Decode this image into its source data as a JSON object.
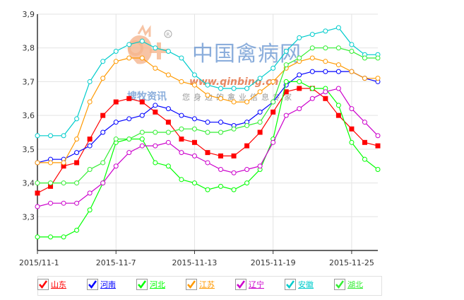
{
  "chart_data": {
    "type": "line",
    "x": [
      "2015/11-1",
      "2015-11-2",
      "2015-11-3",
      "2015-11-4",
      "2015-11-5",
      "2015-11-6",
      "2015-11-7",
      "2015-11-8",
      "2015-11-9",
      "2015-11-10",
      "2015-11-11",
      "2015-11-12",
      "2015-11-13",
      "2015-11-14",
      "2015-11-15",
      "2015-11-16",
      "2015-11-17",
      "2015-11-18",
      "2015-11-19",
      "2015-11-20",
      "2015-11-21",
      "2015-11-22",
      "2015-11-23",
      "2015-11-24",
      "2015-11-25",
      "2015-11-26",
      "2015-11-27"
    ],
    "xtick_labels": [
      "2015/11-1",
      "2015-11-7",
      "2015-11-13",
      "2015-11-19",
      "2015-11-25"
    ],
    "xtick_index": [
      0,
      6,
      12,
      18,
      24
    ],
    "ylim": [
      3.2,
      3.9
    ],
    "yticks": [
      3.3,
      3.4,
      3.5,
      3.6,
      3.7,
      3.8,
      3.9
    ],
    "ytick_labels": [
      "3,3",
      "3,4",
      "3,5",
      "3,6",
      "3,7",
      "3,8",
      "3,9"
    ],
    "grid": true,
    "legend_position": "bottom",
    "series": [
      {
        "name": "山东",
        "color": "#ff0000",
        "marker": "square",
        "values": [
          3.37,
          3.39,
          3.45,
          3.46,
          3.53,
          3.6,
          3.64,
          3.65,
          3.64,
          3.61,
          3.58,
          3.53,
          3.52,
          3.49,
          3.48,
          3.48,
          3.51,
          3.55,
          3.61,
          3.67,
          3.68,
          3.68,
          3.65,
          3.6,
          3.56,
          3.52,
          3.51
        ]
      },
      {
        "name": "河南",
        "color": "#0000ff",
        "marker": "circle",
        "values": [
          3.46,
          3.47,
          3.47,
          3.49,
          3.51,
          3.55,
          3.58,
          3.59,
          3.6,
          3.63,
          3.62,
          3.6,
          3.59,
          3.58,
          3.58,
          3.57,
          3.58,
          3.61,
          3.64,
          3.69,
          3.72,
          3.73,
          3.73,
          3.73,
          3.73,
          3.71,
          3.7
        ]
      },
      {
        "name": "河北",
        "color": "#00ff00",
        "marker": "circle",
        "values": [
          3.24,
          3.24,
          3.24,
          3.26,
          3.32,
          3.4,
          3.52,
          3.53,
          3.53,
          3.46,
          3.45,
          3.41,
          3.4,
          3.38,
          3.39,
          3.38,
          3.4,
          3.44,
          3.53,
          3.7,
          3.7,
          3.68,
          3.68,
          3.63,
          3.52,
          3.47,
          3.44
        ]
      },
      {
        "name": "江苏",
        "color": "#ff9900",
        "marker": "circle",
        "values": [
          3.46,
          3.46,
          3.46,
          3.53,
          3.64,
          3.71,
          3.76,
          3.77,
          3.77,
          3.74,
          3.72,
          3.7,
          3.69,
          3.66,
          3.65,
          3.64,
          3.64,
          3.67,
          3.7,
          3.74,
          3.76,
          3.77,
          3.76,
          3.75,
          3.73,
          3.71,
          3.71
        ]
      },
      {
        "name": "辽宁",
        "color": "#cc00cc",
        "marker": "circle",
        "values": [
          3.33,
          3.34,
          3.34,
          3.34,
          3.37,
          3.4,
          3.45,
          3.49,
          3.51,
          3.51,
          3.52,
          3.49,
          3.48,
          3.46,
          3.44,
          3.43,
          3.44,
          3.45,
          3.52,
          3.6,
          3.62,
          3.65,
          3.67,
          3.68,
          3.62,
          3.58,
          3.54
        ]
      },
      {
        "name": "安徽",
        "color": "#00cccc",
        "marker": "circle",
        "values": [
          3.54,
          3.54,
          3.54,
          3.59,
          3.7,
          3.76,
          3.79,
          3.81,
          3.82,
          3.8,
          3.79,
          3.77,
          3.72,
          3.69,
          3.68,
          3.68,
          3.68,
          3.71,
          3.74,
          3.79,
          3.83,
          3.84,
          3.85,
          3.86,
          3.81,
          3.78,
          3.78
        ]
      },
      {
        "name": "湖北",
        "color": "#33ee33",
        "marker": "circle",
        "values": [
          3.4,
          3.4,
          3.4,
          3.4,
          3.44,
          3.46,
          3.53,
          3.53,
          3.55,
          3.55,
          3.55,
          3.56,
          3.56,
          3.55,
          3.55,
          3.56,
          3.57,
          3.58,
          3.64,
          3.75,
          3.77,
          3.8,
          3.8,
          3.8,
          3.79,
          3.77,
          3.77
        ]
      }
    ]
  },
  "watermark": {
    "logo_text": "中国禽病网",
    "url_text": "www.qinbing.cn",
    "sub_text": "搜牧资讯",
    "slogan_text": "您身边的禽业信息专家",
    "logo_color": "#4a80c8",
    "url_color": "#e05c2a"
  }
}
